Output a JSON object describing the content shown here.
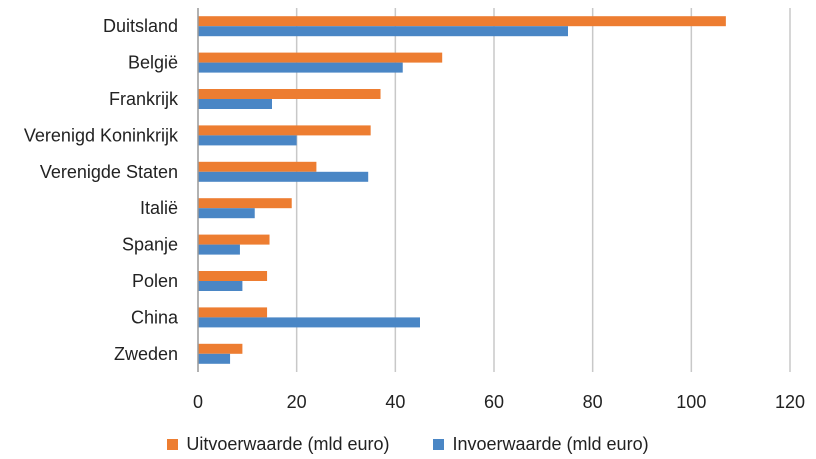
{
  "chart_data": {
    "type": "bar",
    "orientation": "horizontal",
    "categories": [
      "Duitsland",
      "België",
      "Frankrijk",
      "Verenigd Koninkrijk",
      "Verenigde Staten",
      "Italië",
      "Spanje",
      "Polen",
      "China",
      "Zweden"
    ],
    "series": [
      {
        "name": "Uitvoerwaarde (mld euro)",
        "color": "#ed7d31",
        "values": [
          107,
          49.5,
          37,
          35,
          24,
          19,
          14.5,
          14,
          14,
          9
        ]
      },
      {
        "name": "Invoerwaarde (mld euro)",
        "color": "#4a86c5",
        "values": [
          75,
          41.5,
          15,
          20,
          34.5,
          11.5,
          8.5,
          9,
          45,
          6.5
        ]
      }
    ],
    "xlim": [
      0,
      120
    ],
    "xticks": [
      0,
      20,
      40,
      60,
      80,
      100,
      120
    ],
    "grid": "vertical",
    "legend_position": "bottom"
  },
  "legend": {
    "export_label": "Uitvoerwaarde (mld euro)",
    "import_label": "Invoerwaarde (mld euro)"
  }
}
